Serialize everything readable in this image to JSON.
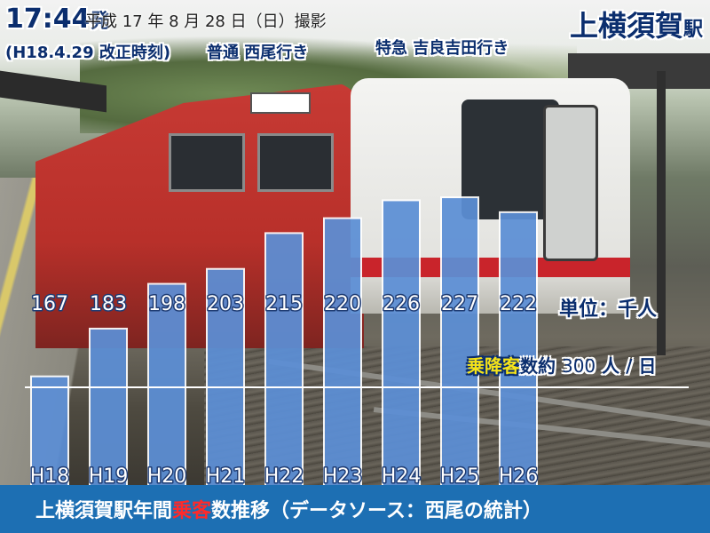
{
  "header": {
    "time": "17:44",
    "time_suffix": "発",
    "date_text": "平成 17 年 8 月 28 日（日）撮影",
    "revision": "(H18.4.29 改正時刻)",
    "local_train": "普通 西尾行き",
    "express_train": "特急 吉良吉田行き",
    "station_name": "上横須賀",
    "station_suffix": "駅"
  },
  "unit": {
    "label": "単位：千人"
  },
  "daily": {
    "highlight": "乗降客",
    "text_a": "数約",
    "number": "300",
    "text_b": "人 / 日"
  },
  "footer": {
    "text_a": "上横須賀駅年間",
    "highlight": "乗客",
    "text_b": "数推移（データソース：西尾の統計）",
    "bg_color": "#1d6fb3",
    "highlight_color": "#ff2a2a"
  },
  "chart_data": {
    "type": "bar",
    "categories": [
      "H18",
      "H19",
      "H20",
      "H21",
      "H22",
      "H23",
      "H24",
      "H25",
      "H26"
    ],
    "values": [
      167,
      183,
      198,
      203,
      215,
      220,
      226,
      227,
      222
    ],
    "title": "上横須賀駅年間乗客数推移",
    "ylabel": "単位：千人",
    "ylim": [
      0,
      230
    ],
    "bar_color": "#5c8fd6",
    "grid": false,
    "legend": "none"
  }
}
